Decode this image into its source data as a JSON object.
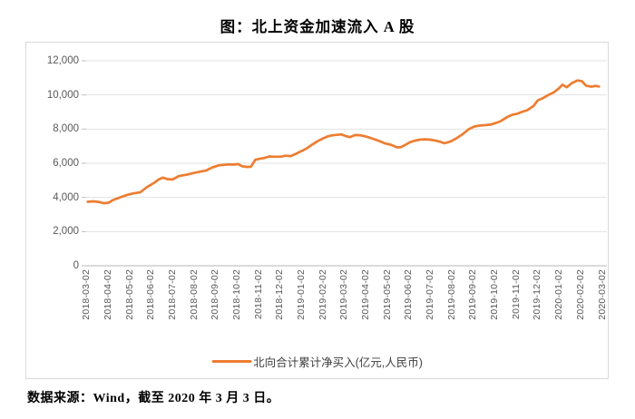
{
  "title": "图：北上资金加速流入 A 股",
  "source_note": "数据来源：Wind，截至 2020 年 3 月 3 日。",
  "legend": {
    "label": "北向合计累计净买入(亿元,人民币)",
    "color": "#ED7D31"
  },
  "colors": {
    "line": "#ED7D31",
    "gridline": "#e2e2e2",
    "axis_line": "#c4c4c4",
    "tick": "#bfbfbf",
    "axis_text": "#595959",
    "frame_border": "#d9d9d9"
  },
  "chart_data": {
    "type": "line",
    "title": "图：北上资金加速流入 A 股",
    "xlabel": "",
    "ylabel": "",
    "ylim": [
      0,
      12000
    ],
    "y_ticks": [
      0,
      2000,
      4000,
      6000,
      8000,
      10000,
      12000
    ],
    "y_tick_labels": [
      "0",
      "2,000",
      "4,000",
      "6,000",
      "8,000",
      "10,000",
      "12,000"
    ],
    "x_tick_labels": [
      "2018-03-02",
      "2018-04-02",
      "2018-05-02",
      "2018-06-02",
      "2018-07-02",
      "2018-08-02",
      "2018-09-02",
      "2018-10-02",
      "2018-11-02",
      "2018-12-02",
      "2019-01-02",
      "2019-02-02",
      "2019-03-02",
      "2019-04-02",
      "2019-05-02",
      "2019-06-02",
      "2019-07-02",
      "2019-08-02",
      "2019-09-02",
      "2019-10-02",
      "2019-11-02",
      "2019-12-02",
      "2020-01-02",
      "2020-02-02",
      "2020-03-02"
    ],
    "x_unit_months_from": "2018-03-02",
    "xlim_months": [
      0,
      24
    ],
    "grid": "horizontal",
    "legend_position": "bottom",
    "series": [
      {
        "name": "北向合计累计净买入(亿元,人民币)",
        "color": "#ED7D31",
        "points": [
          [
            0.0,
            3745
          ],
          [
            0.25,
            3770
          ],
          [
            0.5,
            3740
          ],
          [
            0.75,
            3660
          ],
          [
            1.0,
            3700
          ],
          [
            1.15,
            3830
          ],
          [
            1.5,
            4000
          ],
          [
            1.85,
            4150
          ],
          [
            2.1,
            4230
          ],
          [
            2.45,
            4300
          ],
          [
            2.75,
            4600
          ],
          [
            3.1,
            4860
          ],
          [
            3.3,
            5050
          ],
          [
            3.5,
            5160
          ],
          [
            3.7,
            5070
          ],
          [
            3.95,
            5050
          ],
          [
            4.25,
            5250
          ],
          [
            4.65,
            5340
          ],
          [
            4.9,
            5420
          ],
          [
            5.2,
            5500
          ],
          [
            5.5,
            5570
          ],
          [
            5.8,
            5750
          ],
          [
            6.1,
            5880
          ],
          [
            6.3,
            5900
          ],
          [
            6.55,
            5930
          ],
          [
            6.8,
            5920
          ],
          [
            7.0,
            5950
          ],
          [
            7.2,
            5820
          ],
          [
            7.45,
            5780
          ],
          [
            7.6,
            5800
          ],
          [
            7.8,
            6200
          ],
          [
            8.0,
            6260
          ],
          [
            8.2,
            6300
          ],
          [
            8.45,
            6400
          ],
          [
            8.7,
            6380
          ],
          [
            9.0,
            6390
          ],
          [
            9.2,
            6440
          ],
          [
            9.45,
            6420
          ],
          [
            9.7,
            6560
          ],
          [
            9.9,
            6680
          ],
          [
            10.15,
            6840
          ],
          [
            10.4,
            7050
          ],
          [
            10.7,
            7290
          ],
          [
            10.95,
            7450
          ],
          [
            11.15,
            7560
          ],
          [
            11.35,
            7630
          ],
          [
            11.6,
            7660
          ],
          [
            11.8,
            7690
          ],
          [
            12.0,
            7600
          ],
          [
            12.2,
            7530
          ],
          [
            12.45,
            7650
          ],
          [
            12.65,
            7640
          ],
          [
            12.85,
            7600
          ],
          [
            13.1,
            7510
          ],
          [
            13.35,
            7400
          ],
          [
            13.6,
            7290
          ],
          [
            13.85,
            7160
          ],
          [
            14.1,
            7090
          ],
          [
            14.4,
            6930
          ],
          [
            14.6,
            6950
          ],
          [
            14.8,
            7090
          ],
          [
            15.0,
            7230
          ],
          [
            15.25,
            7330
          ],
          [
            15.5,
            7390
          ],
          [
            15.7,
            7400
          ],
          [
            15.95,
            7380
          ],
          [
            16.2,
            7320
          ],
          [
            16.45,
            7240
          ],
          [
            16.6,
            7170
          ],
          [
            16.9,
            7280
          ],
          [
            17.15,
            7450
          ],
          [
            17.45,
            7700
          ],
          [
            17.75,
            8000
          ],
          [
            18.0,
            8150
          ],
          [
            18.25,
            8210
          ],
          [
            18.5,
            8230
          ],
          [
            18.75,
            8260
          ],
          [
            19.0,
            8360
          ],
          [
            19.2,
            8450
          ],
          [
            19.55,
            8720
          ],
          [
            19.8,
            8850
          ],
          [
            20.0,
            8900
          ],
          [
            20.2,
            9000
          ],
          [
            20.45,
            9100
          ],
          [
            20.75,
            9350
          ],
          [
            20.95,
            9680
          ],
          [
            21.2,
            9820
          ],
          [
            21.45,
            10000
          ],
          [
            21.7,
            10150
          ],
          [
            21.95,
            10400
          ],
          [
            22.1,
            10600
          ],
          [
            22.3,
            10450
          ],
          [
            22.55,
            10700
          ],
          [
            22.8,
            10850
          ],
          [
            23.0,
            10810
          ],
          [
            23.2,
            10540
          ],
          [
            23.45,
            10480
          ],
          [
            23.65,
            10530
          ],
          [
            23.8,
            10490
          ]
        ]
      }
    ]
  }
}
